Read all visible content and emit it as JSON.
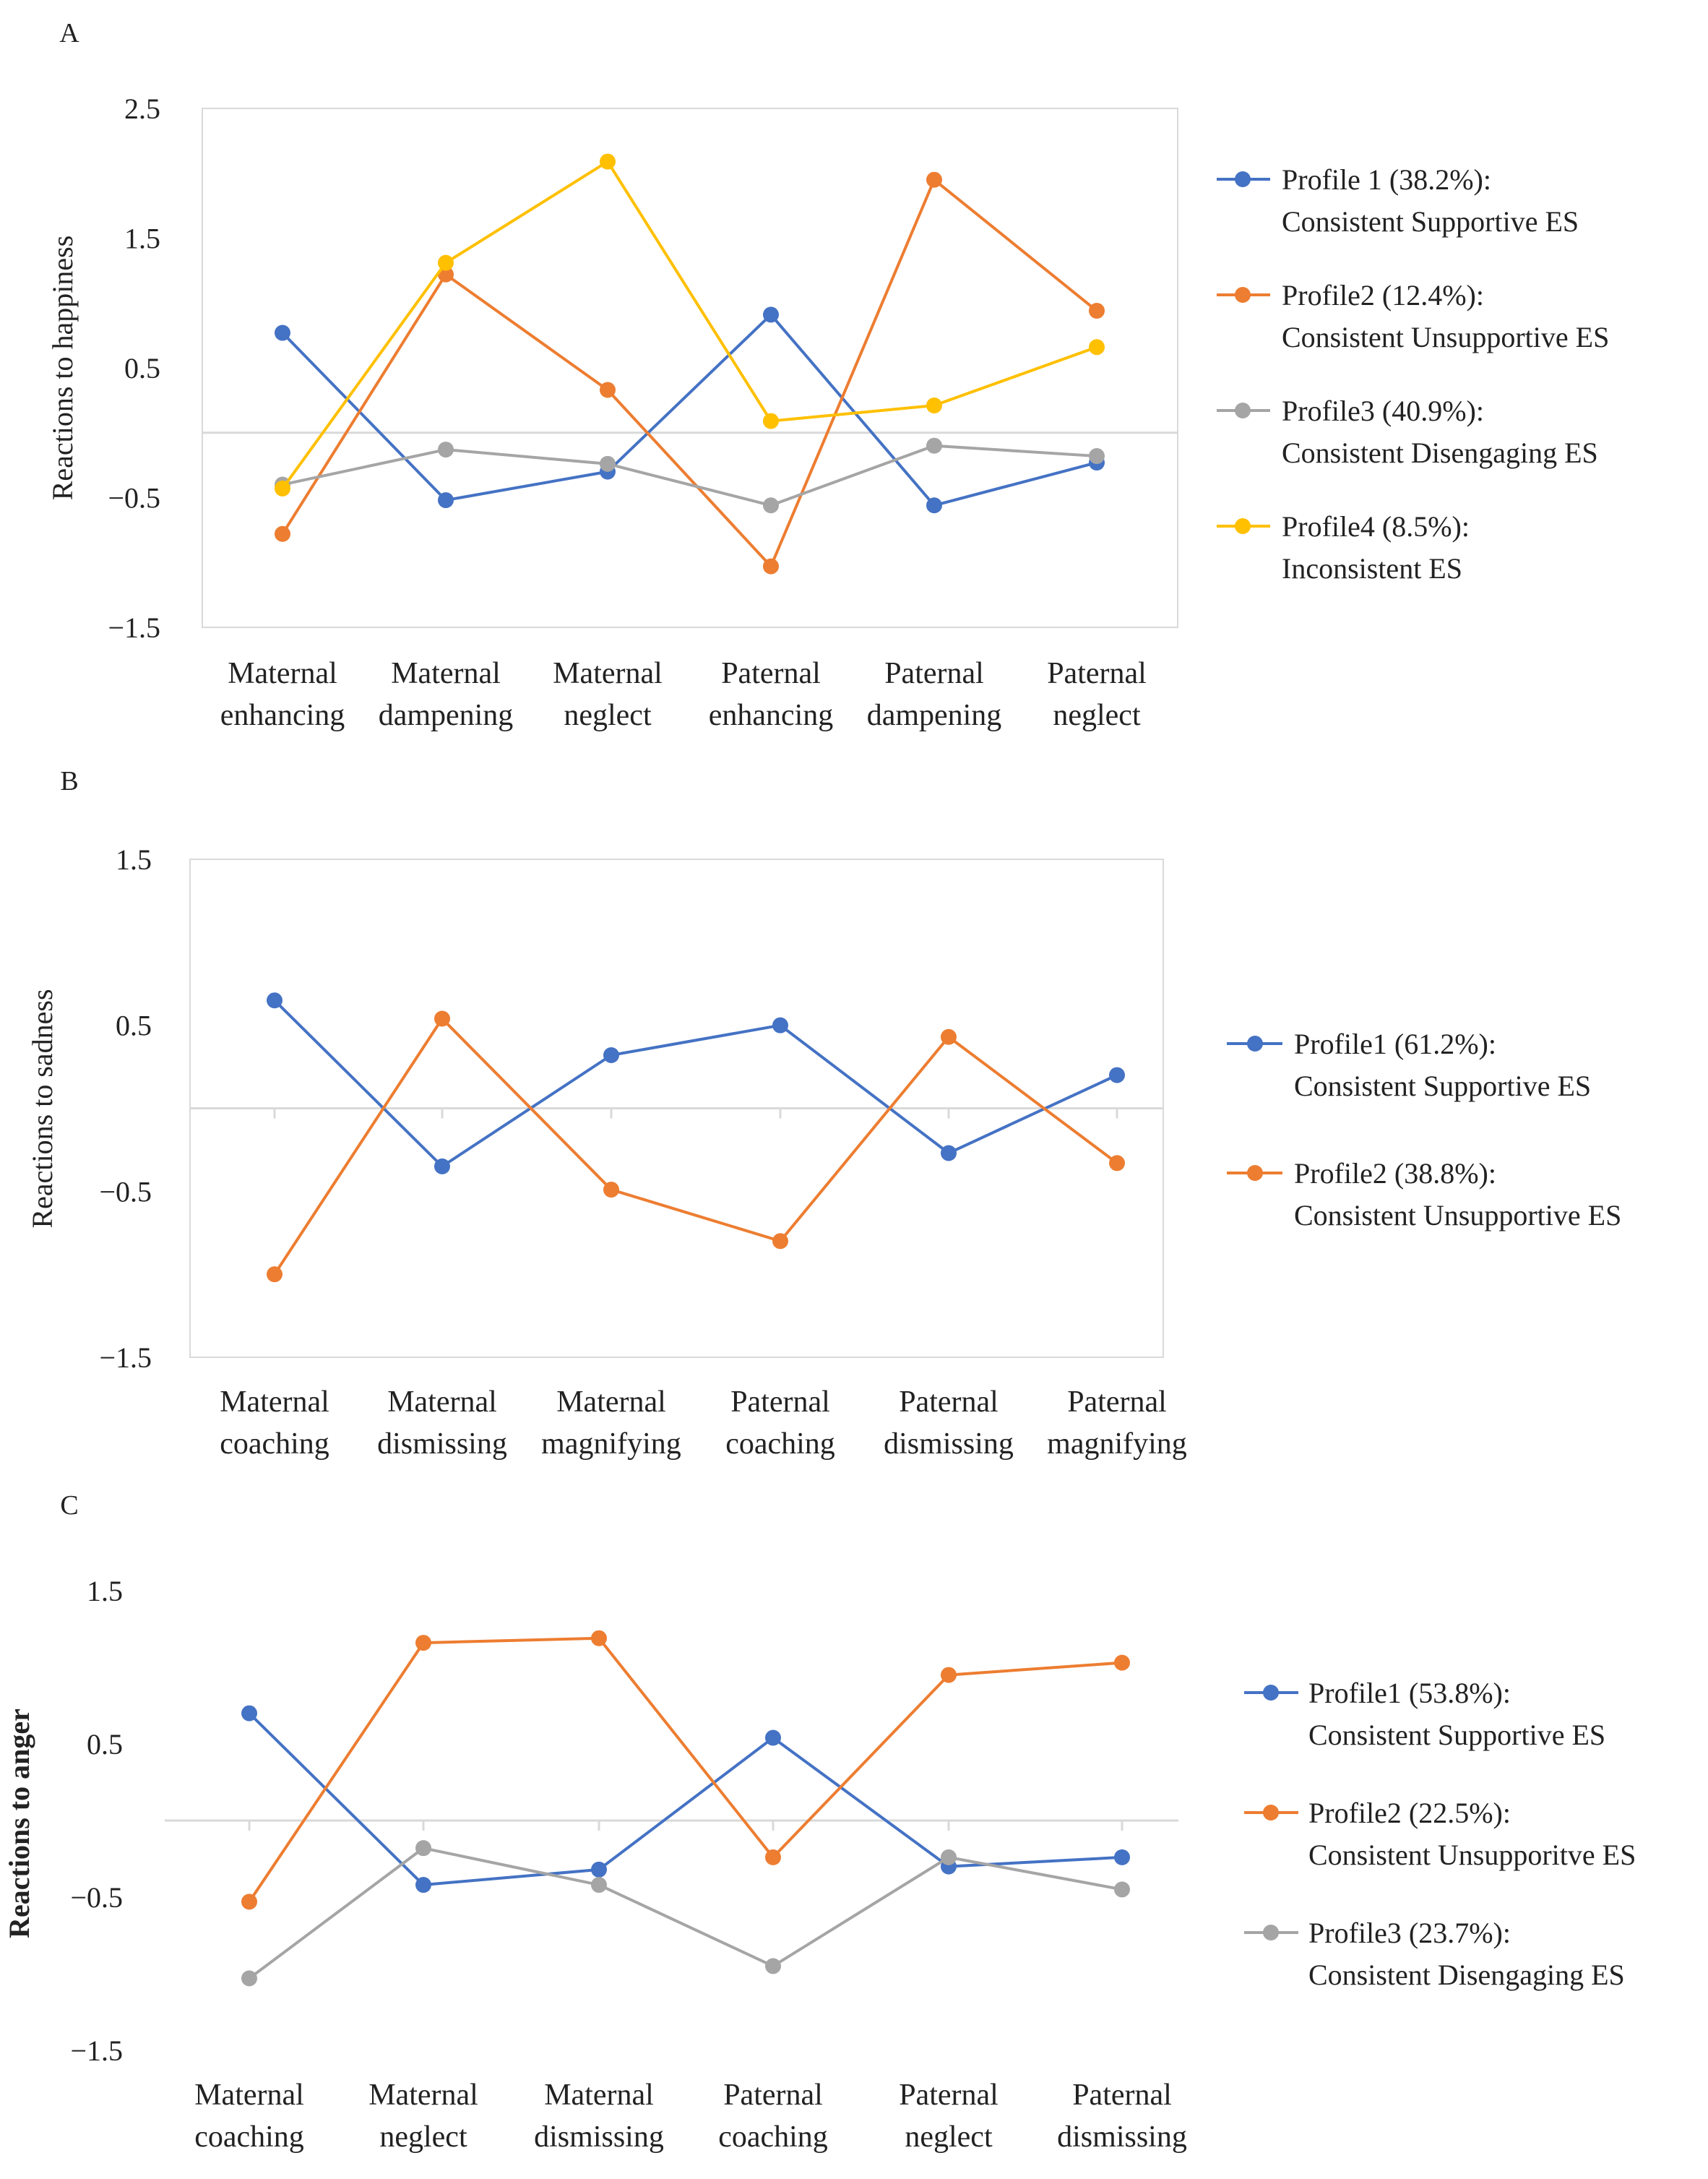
{
  "figure": {
    "panels": [
      "A",
      "B",
      "C"
    ]
  },
  "chart_data": [
    {
      "panel": "A",
      "type": "line",
      "title": "",
      "xlabel": "",
      "ylabel": "Reactions to happiness",
      "ylabel_bold": false,
      "ylim": [
        -1.5,
        2.5
      ],
      "yticks": [
        2.5,
        1.5,
        0.5,
        -0.5,
        -1.5
      ],
      "yticklabels": [
        "2.5",
        "1.5",
        "0.5",
        "−0.5",
        "−1.5"
      ],
      "zero_line": true,
      "plot_border": true,
      "x_tick_marks": false,
      "categories": [
        [
          "Maternal",
          "enhancing"
        ],
        [
          "Maternal",
          "dampening"
        ],
        [
          "Maternal",
          "neglect"
        ],
        [
          "Paternal",
          "enhancing"
        ],
        [
          "Paternal",
          "dampening"
        ],
        [
          "Paternal",
          "neglect"
        ]
      ],
      "legend_position": "right",
      "series": [
        {
          "name": [
            "Profile 1 (38.2%):",
            "Consistent Supportive ES"
          ],
          "color": "#4472C4",
          "values": [
            0.77,
            -0.52,
            -0.3,
            0.91,
            -0.56,
            -0.23
          ]
        },
        {
          "name": [
            "Profile2 (12.4%):",
            "Consistent Unsupportive ES"
          ],
          "color": "#ED7D31",
          "values": [
            -0.78,
            1.22,
            0.33,
            -1.03,
            1.95,
            0.94
          ]
        },
        {
          "name": [
            "Profile3 (40.9%):",
            "Consistent Disengaging ES"
          ],
          "color": "#A5A5A5",
          "values": [
            -0.4,
            -0.13,
            -0.24,
            -0.56,
            -0.1,
            -0.18
          ]
        },
        {
          "name": [
            "Profile4 (8.5%):",
            "Inconsistent ES"
          ],
          "color": "#FFC000",
          "values": [
            -0.43,
            1.31,
            2.09,
            0.09,
            0.21,
            0.66
          ]
        }
      ]
    },
    {
      "panel": "B",
      "type": "line",
      "title": "",
      "xlabel": "",
      "ylabel": "Reactions to sadness",
      "ylabel_bold": false,
      "ylim": [
        -1.5,
        1.5
      ],
      "yticks": [
        1.5,
        0.5,
        -0.5,
        -1.5
      ],
      "yticklabels": [
        "1.5",
        "0.5",
        "−0.5",
        "−1.5"
      ],
      "zero_line": true,
      "plot_border": true,
      "x_tick_marks": true,
      "categories": [
        [
          "Maternal",
          "coaching"
        ],
        [
          "Maternal",
          "dismissing"
        ],
        [
          "Maternal",
          "magnifying"
        ],
        [
          "Paternal",
          "coaching"
        ],
        [
          "Paternal",
          "dismissing"
        ],
        [
          "Paternal",
          "magnifying"
        ]
      ],
      "legend_position": "right",
      "series": [
        {
          "name": [
            "Profile1 (61.2%):",
            "Consistent Supportive ES"
          ],
          "color": "#4472C4",
          "values": [
            0.65,
            -0.35,
            0.32,
            0.5,
            -0.27,
            0.2
          ]
        },
        {
          "name": [
            "Profile2 (38.8%):",
            "Consistent Unsupportive ES"
          ],
          "color": "#ED7D31",
          "values": [
            -1.0,
            0.54,
            -0.49,
            -0.8,
            0.43,
            -0.33
          ]
        }
      ]
    },
    {
      "panel": "C",
      "type": "line",
      "title": "",
      "xlabel": "",
      "ylabel": "Reactions to anger",
      "ylabel_bold": true,
      "ylim": [
        -1.5,
        1.5
      ],
      "yticks": [
        1.5,
        0.5,
        -0.5,
        -1.5
      ],
      "yticklabels": [
        "1.5",
        "0.5",
        "−0.5",
        "−1.5"
      ],
      "zero_line": true,
      "plot_border": false,
      "x_tick_marks": true,
      "categories": [
        [
          "Maternal",
          "coaching"
        ],
        [
          "Maternal",
          "neglect"
        ],
        [
          "Maternal",
          "dismissing"
        ],
        [
          "Paternal",
          "coaching"
        ],
        [
          "Paternal",
          "neglect"
        ],
        [
          "Paternal",
          "dismissing"
        ]
      ],
      "legend_position": "right",
      "series": [
        {
          "name": [
            "Profile1 (53.8%):",
            "Consistent Supportive ES"
          ],
          "color": "#4472C4",
          "values": [
            0.7,
            -0.42,
            -0.32,
            0.54,
            -0.3,
            -0.24
          ]
        },
        {
          "name": [
            "Profile2 (22.5%):",
            "Consistent Unsupporitve ES"
          ],
          "color": "#ED7D31",
          "values": [
            -0.53,
            1.16,
            1.19,
            -0.24,
            0.95,
            1.03
          ]
        },
        {
          "name": [
            "Profile3 (23.7%):",
            "Consistent Disengaging ES"
          ],
          "color": "#A5A5A5",
          "values": [
            -1.03,
            -0.18,
            -0.42,
            -0.95,
            -0.24,
            -0.45
          ]
        }
      ]
    }
  ]
}
